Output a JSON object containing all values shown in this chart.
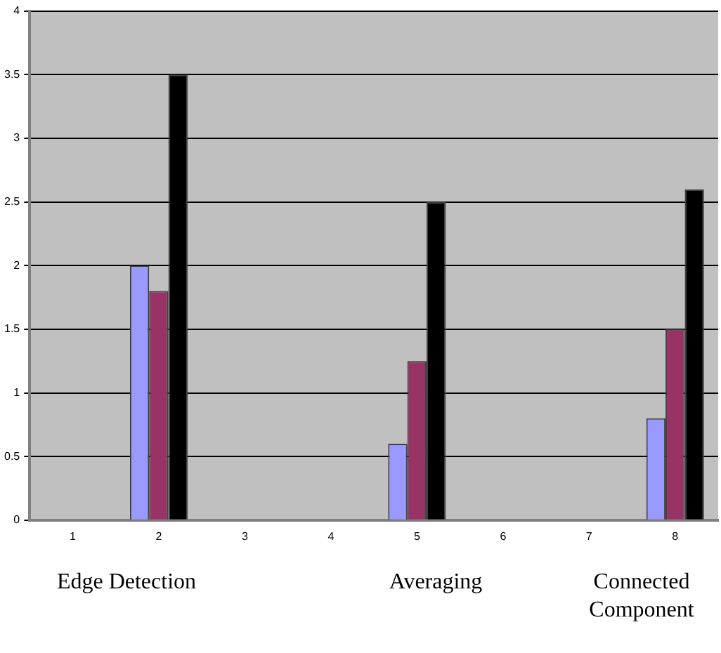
{
  "chart_data": {
    "type": "bar",
    "categories": [
      "1",
      "2",
      "3",
      "4",
      "5",
      "6",
      "7",
      "8"
    ],
    "series": [
      {
        "color": "#9999ff",
        "values": [
          null,
          2,
          null,
          null,
          0.6,
          null,
          null,
          0.8
        ]
      },
      {
        "color": "#993366",
        "values": [
          null,
          1.8,
          null,
          null,
          1.25,
          null,
          null,
          1.5
        ]
      },
      {
        "color": "#000000",
        "values": [
          null,
          3.5,
          null,
          null,
          2.5,
          null,
          null,
          2.6
        ]
      }
    ],
    "ylim": [
      0,
      4
    ],
    "yticks": [
      0,
      0.5,
      1,
      1.5,
      2,
      2.5,
      3,
      3.5,
      4
    ],
    "grid": "y",
    "legend": false,
    "annotations": [
      "Edge Detection",
      "Averaging",
      "Connected Component"
    ]
  }
}
